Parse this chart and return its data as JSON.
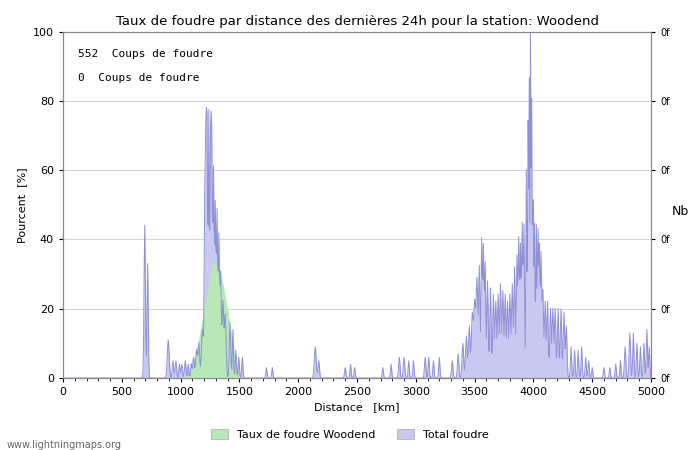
{
  "title": "Taux de foudre par distance des dernières 24h pour la station: Woodend",
  "xlabel": "Distance   [km]",
  "ylabel_left": "Pourcent  [%]",
  "ylabel_right": "Nb",
  "xlim": [
    0,
    5000
  ],
  "ylim": [
    0,
    100
  ],
  "xticks": [
    0,
    500,
    1000,
    1500,
    2000,
    2500,
    3000,
    3500,
    4000,
    4500,
    5000
  ],
  "yticks_left": [
    0,
    20,
    40,
    60,
    80,
    100
  ],
  "annotation1": "552  Coups de foudre",
  "annotation2": "0  Coups de foudre",
  "legend_label1": "Taux de foudre Woodend",
  "legend_label2": "Total foudre",
  "fill_color_green": "#b8e8b8",
  "fill_color_blue": "#c8c8f0",
  "line_color": "#9090d8",
  "watermark": "www.lightningmaps.org",
  "right_ytick_label": "0f",
  "bg_color": "#ffffff",
  "grid_color": "#999999"
}
